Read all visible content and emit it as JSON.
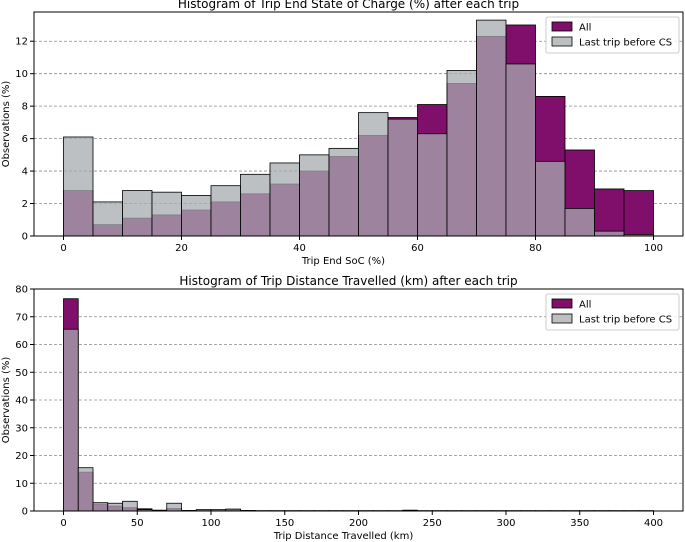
{
  "colors": {
    "all": "#800f6b",
    "last": "#a7abad",
    "edge": "#000000",
    "grid": "#8c8c8c"
  },
  "legend_labels": [
    "All",
    "Last trip before CS"
  ],
  "chart_data": [
    {
      "type": "bar",
      "title": "Histogram of Trip End State of Charge (%) after each trip",
      "xlabel": "Trip End SoC (%)",
      "ylabel": "Observations (%)",
      "xlim": [
        -5,
        105
      ],
      "ylim": [
        0,
        13.8
      ],
      "xticks": [
        0,
        20,
        40,
        60,
        80,
        100
      ],
      "yticks": [
        0,
        2,
        4,
        6,
        8,
        10,
        12
      ],
      "grid": "horizontal dashed",
      "legend_position": "top-right",
      "bin_edges": [
        0,
        5,
        10,
        15,
        20,
        25,
        30,
        35,
        40,
        45,
        50,
        55,
        60,
        65,
        70,
        75,
        80,
        85,
        90,
        95,
        100
      ],
      "series": [
        {
          "name": "All",
          "values": [
            2.8,
            0.7,
            1.1,
            1.3,
            1.6,
            2.1,
            2.6,
            3.2,
            4.0,
            4.9,
            6.2,
            7.3,
            8.1,
            9.4,
            12.3,
            13.0,
            8.6,
            5.3,
            2.9,
            2.8
          ]
        },
        {
          "name": "Last trip before CS",
          "values": [
            6.1,
            2.1,
            2.8,
            2.7,
            2.5,
            3.1,
            3.8,
            4.5,
            5.0,
            5.4,
            7.6,
            7.2,
            6.3,
            10.2,
            13.3,
            10.6,
            4.6,
            1.7,
            0.3,
            0.1
          ]
        }
      ]
    },
    {
      "type": "bar",
      "title": "Histogram of Trip Distance Travelled (km) after each trip",
      "xlabel": "Trip Distance Travelled (km)",
      "ylabel": "Observations (%)",
      "xlim": [
        -20,
        420
      ],
      "ylim": [
        0,
        80
      ],
      "xticks": [
        0,
        50,
        100,
        150,
        200,
        250,
        300,
        350,
        400
      ],
      "yticks": [
        0,
        10,
        20,
        30,
        40,
        50,
        60,
        70,
        80
      ],
      "grid": "horizontal dashed",
      "legend_position": "top-right",
      "bin_edges": [
        0,
        10,
        20,
        30,
        40,
        50,
        60,
        70,
        80,
        90,
        100,
        110,
        120,
        130,
        140,
        150,
        160,
        170,
        180,
        190,
        200,
        210,
        220,
        230,
        240,
        250,
        260,
        270,
        280,
        290,
        300,
        310,
        320,
        330,
        340,
        350,
        360,
        370,
        380,
        390,
        400
      ],
      "series": [
        {
          "name": "All",
          "values": [
            76.5,
            14.0,
            2.5,
            1.8,
            1.2,
            0.8,
            0.3,
            0.9,
            0.2,
            0.3,
            0.3,
            0.4,
            0.2,
            0.1,
            0.1,
            0.1,
            0.1,
            0.1,
            0.1,
            0.1,
            0.1,
            0.1,
            0.1,
            0.2,
            0.1,
            0.1,
            0.1,
            0.1,
            0.1,
            0.1,
            0.1,
            0.1,
            0.1,
            0.1,
            0.1,
            0.1,
            0.1,
            0.1,
            0.1,
            0.1
          ]
        },
        {
          "name": "Last trip before CS",
          "values": [
            65.5,
            15.6,
            3.0,
            2.8,
            3.5,
            0.5,
            0.2,
            2.8,
            0.1,
            0.5,
            0.5,
            0.7,
            0.1,
            0.1,
            0.1,
            0.1,
            0.1,
            0.1,
            0.1,
            0.1,
            0.1,
            0.1,
            0.1,
            0.3,
            0.1,
            0.1,
            0.1,
            0.1,
            0.1,
            0.1,
            0.1,
            0.1,
            0.1,
            0.1,
            0.1,
            0.1,
            0.1,
            0.1,
            0.1,
            0.1
          ]
        }
      ]
    }
  ]
}
